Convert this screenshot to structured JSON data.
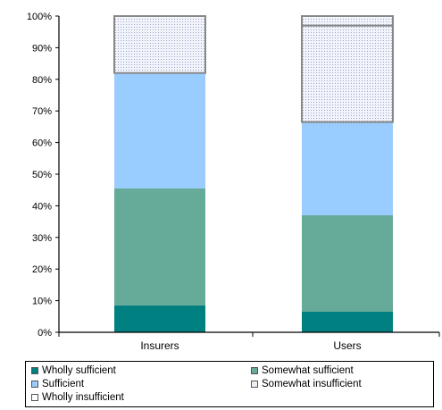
{
  "chart_data": {
    "type": "bar",
    "stacked": true,
    "categories": [
      "Insurers",
      "Users"
    ],
    "series": [
      {
        "name": "Wholly sufficient",
        "values": [
          8.5,
          6.5
        ],
        "color": "#008080"
      },
      {
        "name": "Somewhat sufficient",
        "values": [
          37,
          30.5
        ],
        "color": "#66aa99"
      },
      {
        "name": "Sufficient",
        "values": [
          36.5,
          29.5
        ],
        "color": "#99ccff"
      },
      {
        "name": "Somewhat insufficient",
        "values": [
          18,
          30.5
        ],
        "color": "#eeeef8",
        "pattern": "dotted"
      },
      {
        "name": "Wholly insufficient",
        "values": [
          0,
          3
        ],
        "color": "#ffffff",
        "pattern": "dotted"
      }
    ],
    "ylim": [
      0,
      100
    ],
    "yticks": [
      "0%",
      "10%",
      "20%",
      "30%",
      "40%",
      "50%",
      "60%",
      "70%",
      "80%",
      "90%",
      "100%"
    ],
    "grid": false,
    "legend_position": "bottom"
  }
}
